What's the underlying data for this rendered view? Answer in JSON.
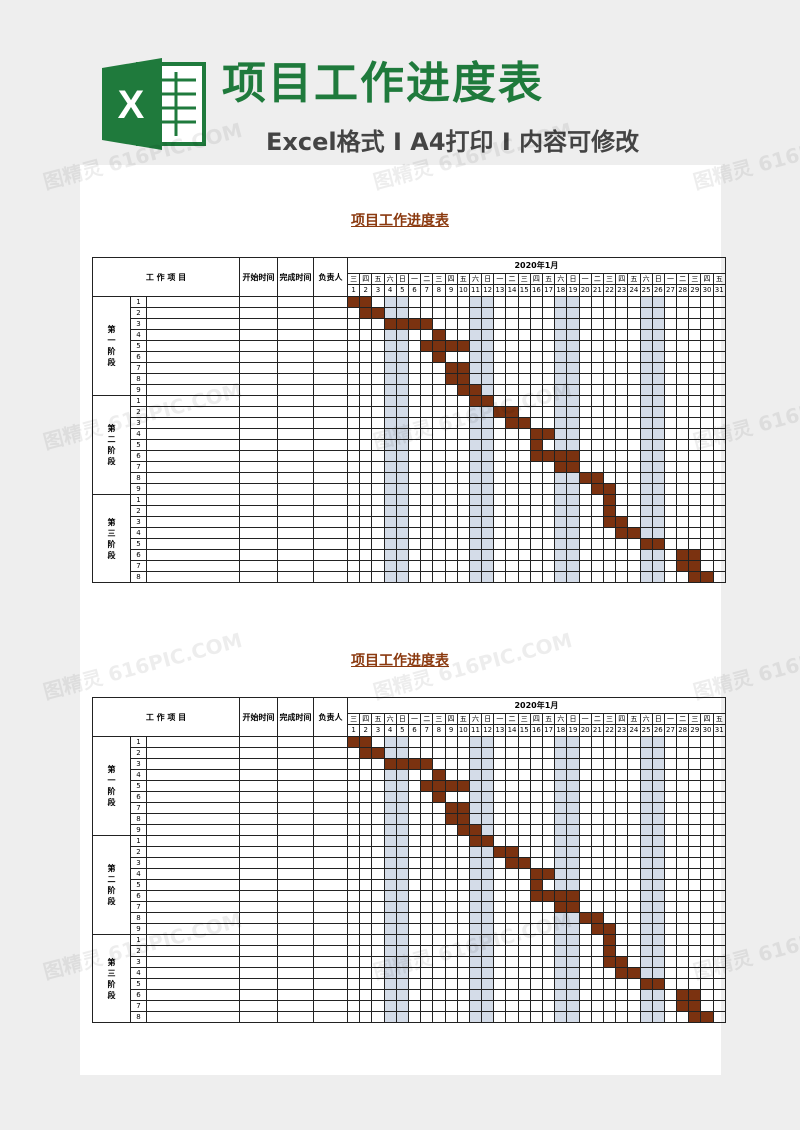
{
  "header": {
    "title": "项目工作进度表",
    "subtitle": "Excel格式 I A4打印 I 内容可修改",
    "logo_letter": "X"
  },
  "colors": {
    "green": "#1f7a3c",
    "bar": "#7b3210",
    "weekend": "#d4dce8",
    "title_brown": "#8b3a10"
  },
  "watermark": "图精灵 616PIC.COM",
  "sheet": {
    "title": "项目工作进度表",
    "col_item": "工 作 项 目",
    "col_start": "开始时间",
    "col_end": "完成时间",
    "col_owner": "负责人",
    "month": "2020年1月",
    "weekdays": [
      "三",
      "四",
      "五",
      "六",
      "日",
      "一",
      "二",
      "三",
      "四",
      "五",
      "六",
      "日",
      "一",
      "二",
      "三",
      "四",
      "五",
      "六",
      "日",
      "一",
      "二",
      "三",
      "四",
      "五",
      "六",
      "日",
      "一",
      "二",
      "三",
      "四",
      "五"
    ],
    "days": [
      "1",
      "2",
      "3",
      "4",
      "5",
      "6",
      "7",
      "8",
      "9",
      "10",
      "11",
      "12",
      "13",
      "14",
      "15",
      "16",
      "17",
      "18",
      "19",
      "20",
      "21",
      "22",
      "23",
      "24",
      "25",
      "26",
      "27",
      "28",
      "29",
      "30",
      "31"
    ],
    "weekend_days": [
      4,
      5,
      11,
      12,
      18,
      19,
      25,
      26
    ],
    "stages": [
      {
        "name": "第一阶段",
        "rows": [
          {
            "n": "1",
            "filled": [
              1,
              2
            ]
          },
          {
            "n": "2",
            "filled": [
              2,
              3
            ]
          },
          {
            "n": "3",
            "filled": [
              4,
              5,
              6,
              7
            ]
          },
          {
            "n": "4",
            "filled": [
              8
            ]
          },
          {
            "n": "5",
            "filled": [
              7,
              8,
              9,
              10
            ]
          },
          {
            "n": "6",
            "filled": [
              8
            ]
          },
          {
            "n": "7",
            "filled": [
              9,
              10
            ]
          },
          {
            "n": "8",
            "filled": [
              9,
              10
            ]
          },
          {
            "n": "9",
            "filled": [
              10,
              11
            ]
          }
        ]
      },
      {
        "name": "第二阶段",
        "rows": [
          {
            "n": "1",
            "filled": [
              11,
              12
            ]
          },
          {
            "n": "2",
            "filled": [
              13,
              14
            ]
          },
          {
            "n": "3",
            "filled": [
              14,
              15
            ]
          },
          {
            "n": "4",
            "filled": [
              16,
              17
            ]
          },
          {
            "n": "5",
            "filled": [
              16
            ]
          },
          {
            "n": "6",
            "filled": [
              16,
              17,
              18,
              19
            ]
          },
          {
            "n": "7",
            "filled": [
              18,
              19
            ]
          },
          {
            "n": "8",
            "filled": [
              20,
              21
            ]
          },
          {
            "n": "9",
            "filled": [
              21,
              22
            ]
          }
        ]
      },
      {
        "name": "第三阶段",
        "rows": [
          {
            "n": "1",
            "filled": [
              22
            ]
          },
          {
            "n": "2",
            "filled": [
              22
            ]
          },
          {
            "n": "3",
            "filled": [
              22,
              23
            ]
          },
          {
            "n": "4",
            "filled": [
              23,
              24
            ]
          },
          {
            "n": "5",
            "filled": [
              25,
              26
            ]
          },
          {
            "n": "6",
            "filled": [
              28,
              29
            ]
          },
          {
            "n": "7",
            "filled": [
              28,
              29
            ]
          },
          {
            "n": "8",
            "filled": [
              29,
              30
            ]
          }
        ]
      }
    ]
  }
}
